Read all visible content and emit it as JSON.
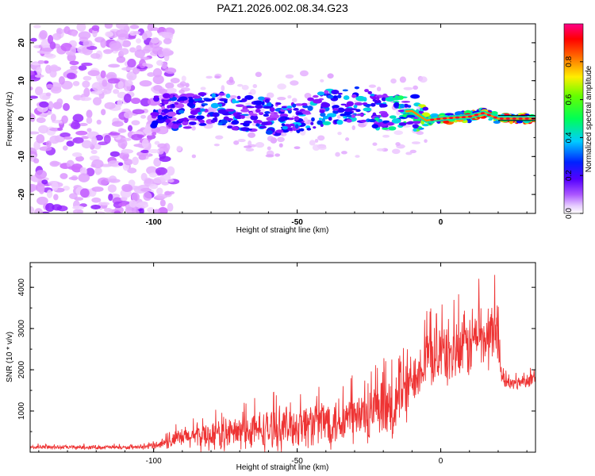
{
  "chart_data": [
    {
      "type": "heatmap",
      "title": "PAZ1.2026.002.08.34.G23",
      "xlabel": "Height of straight line (km)",
      "ylabel": "Frequency (Hz)",
      "xlim": [
        -143,
        33
      ],
      "ylim": [
        -25,
        25
      ],
      "x_ticks": [
        {
          "value": -100,
          "label": "-100"
        },
        {
          "value": -50,
          "label": "-50"
        },
        {
          "value": 0,
          "label": "0"
        }
      ],
      "y_ticks": [
        {
          "value": 20,
          "label": "20"
        },
        {
          "value": 10,
          "label": "10"
        },
        {
          "value": 0,
          "label": "0"
        },
        {
          "value": -10,
          "label": "-10"
        },
        {
          "value": -20,
          "label": "-20"
        }
      ],
      "colorbar": {
        "label": "Normalized spectral amplitude",
        "range": [
          0,
          1
        ],
        "ticks": [
          {
            "value": 0.0,
            "label": "0.0"
          },
          {
            "value": 0.2,
            "label": "0.2"
          },
          {
            "value": 0.4,
            "label": "0.4"
          },
          {
            "value": 0.6,
            "label": "0.6"
          },
          {
            "value": 0.8,
            "label": "0.8"
          }
        ],
        "colors": [
          "#ffffff",
          "#cc66ff",
          "#7700ff",
          "#0000ff",
          "#00ccff",
          "#00ff66",
          "#ccff00",
          "#ffaa00",
          "#ff0000",
          "#ff0099"
        ]
      },
      "signal_track": [
        {
          "x": -100,
          "f": 1.5,
          "amp": 0.35
        },
        {
          "x": -80,
          "f": 2.5,
          "amp": 0.45
        },
        {
          "x": -65,
          "f": 1.0,
          "amp": 0.45
        },
        {
          "x": -50,
          "f": 0.0,
          "amp": 0.45
        },
        {
          "x": -40,
          "f": 3.0,
          "amp": 0.5
        },
        {
          "x": -30,
          "f": 4.0,
          "amp": 0.5
        },
        {
          "x": -20,
          "f": 1.5,
          "amp": 0.55
        },
        {
          "x": -10,
          "f": 2.0,
          "amp": 0.6
        },
        {
          "x": -5,
          "f": -0.5,
          "amp": 0.7
        },
        {
          "x": 0,
          "f": 0.0,
          "amp": 0.95
        },
        {
          "x": 10,
          "f": 0.5,
          "amp": 0.95
        },
        {
          "x": 15,
          "f": 1.5,
          "amp": 0.9
        },
        {
          "x": 20,
          "f": 0.0,
          "amp": 0.95
        },
        {
          "x": 33,
          "f": 0.0,
          "amp": 0.95
        }
      ]
    },
    {
      "type": "line",
      "title": "",
      "xlabel": "Height of straight line (km)",
      "ylabel": "SNR (10 * v/v)",
      "xlim": [
        -143,
        33
      ],
      "ylim": [
        0,
        4600
      ],
      "color": "#ee3333",
      "x_ticks": [
        {
          "value": -100,
          "label": "-100"
        },
        {
          "value": -50,
          "label": "-50"
        },
        {
          "value": 0,
          "label": "0"
        }
      ],
      "y_ticks": [
        {
          "value": 1000,
          "label": "1000"
        },
        {
          "value": 2000,
          "label": "2000"
        },
        {
          "value": 3000,
          "label": "3000"
        },
        {
          "value": 4000,
          "label": "4000"
        }
      ],
      "envelope": {
        "x": [
          -143,
          -115,
          -105,
          -100,
          -95,
          -90,
          -80,
          -70,
          -60,
          -50,
          -40,
          -30,
          -25,
          -20,
          -16,
          -15,
          -12,
          -11,
          -10,
          -5,
          0,
          5,
          10,
          13,
          16,
          18,
          20,
          21,
          22,
          25,
          30,
          33
        ],
        "mean": [
          120,
          120,
          110,
          160,
          250,
          350,
          420,
          480,
          550,
          650,
          750,
          830,
          900,
          950,
          1000,
          1600,
          1500,
          1600,
          1800,
          2300,
          2400,
          2400,
          2600,
          2900,
          2700,
          3000,
          2900,
          2000,
          1700,
          1650,
          1750,
          1800
        ],
        "amp": [
          60,
          60,
          50,
          100,
          200,
          300,
          450,
          500,
          600,
          650,
          750,
          800,
          850,
          900,
          900,
          1300,
          1300,
          1000,
          700,
          900,
          900,
          1000,
          1000,
          1100,
          900,
          1100,
          1000,
          250,
          200,
          200,
          200,
          200
        ]
      }
    }
  ]
}
